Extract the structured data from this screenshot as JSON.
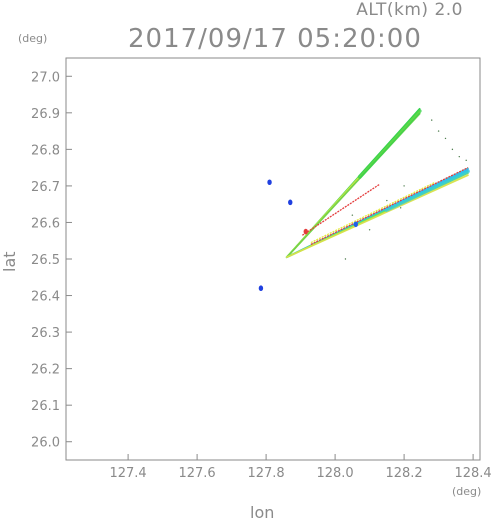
{
  "header": {
    "alt_label": "ALT(km) 2.0",
    "timestamp": "2017/09/17 05:20:00"
  },
  "chart_data": {
    "type": "scatter",
    "title": "2017/09/17 05:20:00",
    "xlabel": "lon",
    "ylabel": "lat",
    "x_unit": "(deg)",
    "y_unit": "(deg)",
    "xlim": [
      127.22,
      128.42
    ],
    "ylim": [
      25.95,
      27.05
    ],
    "x_ticks": [
      127.4,
      127.6,
      127.8,
      128.0,
      128.2,
      128.4
    ],
    "x_tick_labels": [
      "127.4",
      "127.6",
      "127.8",
      "128.0",
      "128.2",
      "128.4"
    ],
    "y_ticks": [
      26.0,
      26.1,
      26.2,
      26.3,
      26.4,
      26.5,
      26.6,
      26.7,
      26.8,
      26.9,
      27.0
    ],
    "y_tick_labels": [
      "26.0",
      "26.1",
      "26.2",
      "26.3",
      "26.4",
      "26.5",
      "26.6",
      "26.7",
      "26.8",
      "26.9",
      "27.0"
    ],
    "grid": false,
    "features": [
      {
        "kind": "beam",
        "from": [
          127.86,
          26.505
        ],
        "to": [
          128.245,
          26.905
        ],
        "colors": [
          "#2bd24a",
          "#a8e24c",
          "#e4ea3c",
          "#6fd24a"
        ]
      },
      {
        "kind": "beam",
        "from": [
          127.86,
          26.505
        ],
        "to": [
          128.385,
          26.74
        ],
        "colors": [
          "#31c8e8",
          "#3aa8f0",
          "#2be0b0",
          "#7ee04a",
          "#d8e24a"
        ]
      },
      {
        "kind": "line",
        "from": [
          127.905,
          26.565
        ],
        "to": [
          128.13,
          26.705
        ],
        "color": "#e43c3c"
      },
      {
        "kind": "line",
        "from": [
          127.93,
          26.54
        ],
        "to": [
          128.385,
          26.75
        ],
        "color": "#e43c3c"
      },
      {
        "kind": "line",
        "from": [
          127.93,
          26.545
        ],
        "to": [
          128.29,
          26.71
        ],
        "color": "#e4ea3c"
      }
    ],
    "blobs": [
      {
        "lon": 127.81,
        "lat": 26.71,
        "color": "#2040e0"
      },
      {
        "lon": 127.87,
        "lat": 26.655,
        "color": "#2040e0"
      },
      {
        "lon": 127.785,
        "lat": 26.42,
        "color": "#2040e0"
      },
      {
        "lon": 128.06,
        "lat": 26.595,
        "color": "#2060e8"
      },
      {
        "lon": 127.915,
        "lat": 26.575,
        "color": "#e43c3c"
      }
    ],
    "scatter_dots": [
      [
        128.28,
        26.88
      ],
      [
        128.3,
        26.85
      ],
      [
        128.32,
        26.83
      ],
      [
        128.34,
        26.8
      ],
      [
        128.36,
        26.78
      ],
      [
        128.38,
        26.77
      ],
      [
        128.2,
        26.7
      ],
      [
        128.15,
        26.66
      ],
      [
        128.05,
        26.62
      ],
      [
        128.03,
        26.5
      ],
      [
        128.1,
        26.58
      ],
      [
        128.19,
        26.64
      ]
    ]
  }
}
